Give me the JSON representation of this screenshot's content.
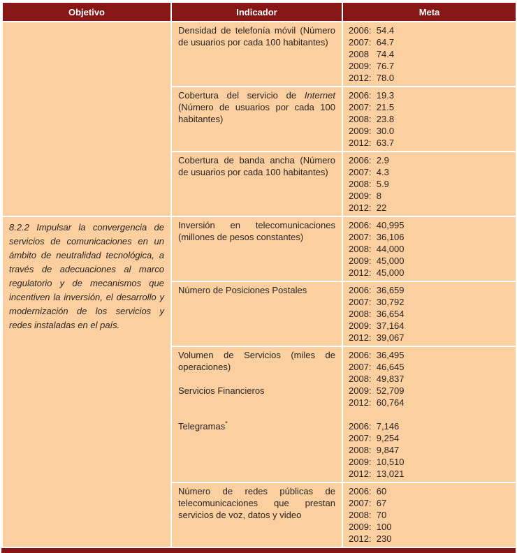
{
  "colors": {
    "header_bg": "#871616",
    "body_bg": "#FBCFA0",
    "grid": "#FFFFFF",
    "text": "#2A2420",
    "header_text": "#FFFFFF"
  },
  "table": {
    "headers": [
      "Objetivo",
      "Indicador",
      "Meta"
    ],
    "groups": [
      {
        "objetivo": "",
        "rows": [
          {
            "indicador": [
              [
                {
                  "t": "Densidad de telefonía móvil (Número de usuarios por cada 100 habitantes)"
                }
              ]
            ],
            "meta": [
              "2006:  54.4",
              "2007:  64.7",
              "2008   74.4",
              "2009:  76.7",
              "2012:  78.0"
            ]
          },
          {
            "indicador": [
              [
                {
                  "t": "Cobertura del servicio de "
                },
                {
                  "t": "Internet",
                  "i": true
                },
                {
                  "t": " (Número de usuarios por cada 100 habitantes)"
                }
              ]
            ],
            "meta": [
              "2006:  19.3",
              "2007:  21.5",
              "2008:  23.8",
              "2009:  30.0",
              "2012:  63.7"
            ]
          },
          {
            "indicador": [
              [
                {
                  "t": "Cobertura de banda ancha (Número de usuarios por cada 100 habitantes)"
                }
              ]
            ],
            "meta": [
              "2006:  2.9",
              "2007:  4.3",
              "2008:  5.9",
              "2009:  8",
              "2012:  22"
            ]
          }
        ]
      },
      {
        "objetivo": "8.2.2 Impulsar la convergencia de servicios de comunicaciones en un ámbito de neutralidad tecnológica, a través de adecuaciones al marco regulatorio y de mecanismos que incentiven la inversión, el desarrollo y modernización de los servicios y redes instaladas en el país.",
        "rows": [
          {
            "indicador": [
              [
                {
                  "t": "Inversión en telecomunicaciones (millones de pesos constantes)"
                }
              ]
            ],
            "meta": [
              "2006:  40,995",
              "2007:  36,106",
              "2008:  44,000",
              "2009:  45,000",
              "2012:  45,000"
            ]
          },
          {
            "indicador": [
              [
                {
                  "t": "Número de Posiciones Postales"
                }
              ]
            ],
            "meta": [
              "2006:  36,659",
              "2007:  30,792",
              "2008:  36,654",
              "2009:  37,164",
              "2012:  39,067"
            ]
          },
          {
            "indicador": [
              [
                {
                  "t": "Volumen de Servicios (miles de operaciones)"
                }
              ],
              [],
              [
                {
                  "t": "Servicios Financieros"
                }
              ],
              [],
              [],
              [
                {
                  "t": "Telegramas"
                },
                {
                  "t": "*",
                  "sup": true
                }
              ]
            ],
            "meta": [
              "2006:  36,495",
              "2007:  46,645",
              "2008:  49,837",
              "2009:  52,709",
              "2012:  60,764",
              "",
              "2006:  7,146",
              "2007:  9,254",
              "2008:  9,847",
              "2009:  10,510",
              "2012:  13,021"
            ]
          },
          {
            "indicador": [
              [
                {
                  "t": "Número de redes públicas de telecomunicaciones que prestan servicios de voz, datos y video"
                }
              ]
            ],
            "meta": [
              "2006:  60",
              "2007:  67",
              "2008:  70",
              "2009:  100",
              "2012:  230"
            ]
          }
        ]
      }
    ]
  }
}
